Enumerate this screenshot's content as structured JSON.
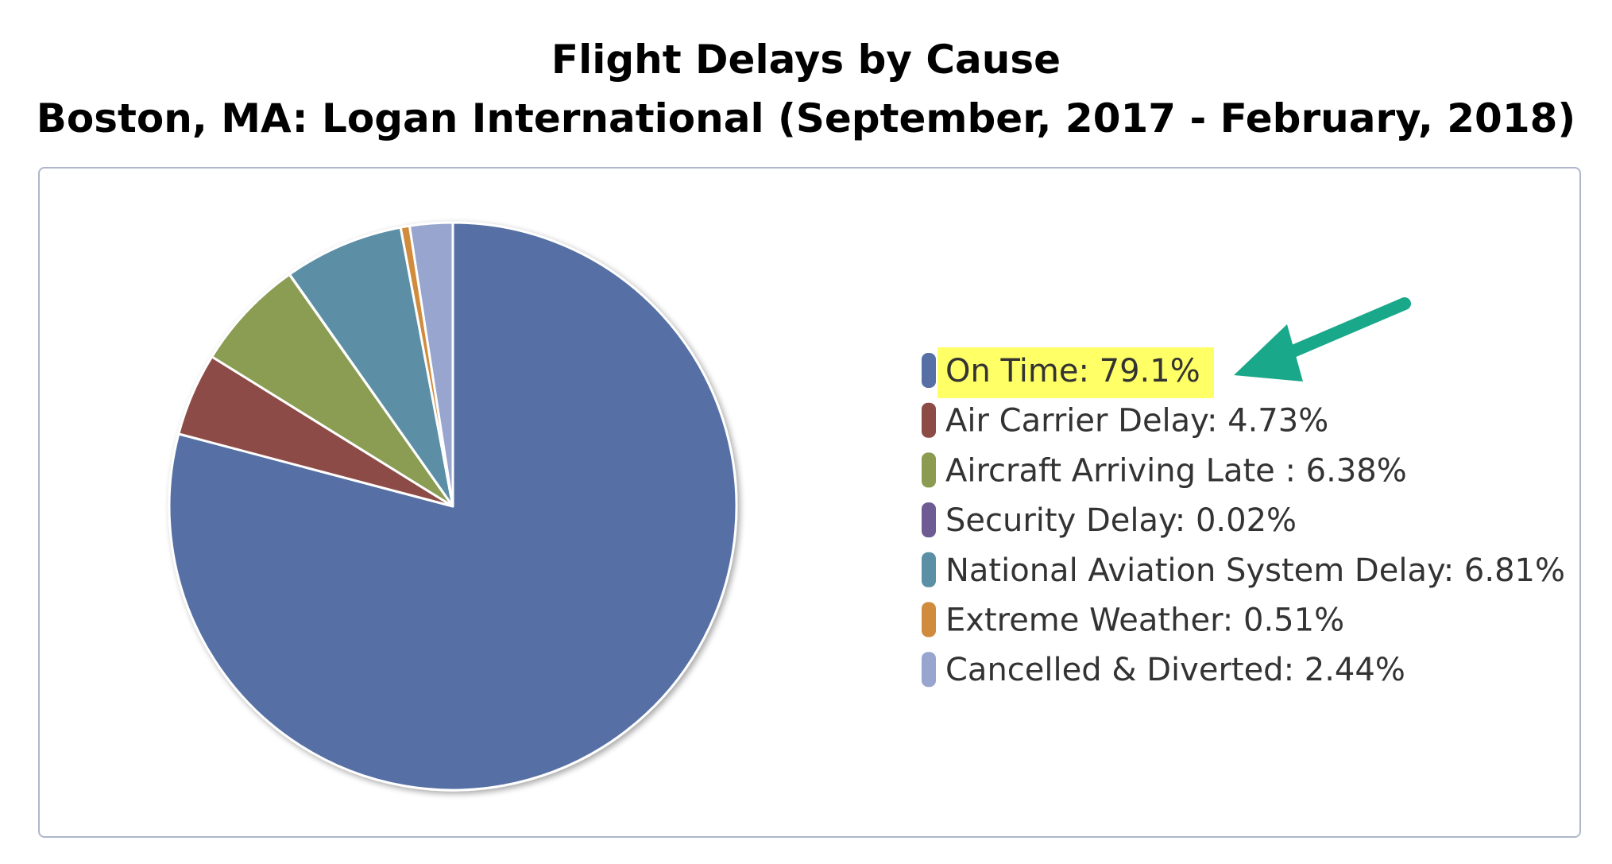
{
  "title": "Flight Delays by Cause",
  "subtitle": "Boston, MA: Logan International (September, 2017 - February, 2018)",
  "highlight": {
    "label": "On Time: 79.1%",
    "fill": "#ffff66",
    "arrow_color": "#1aa88a"
  },
  "chart_data": {
    "type": "pie",
    "title": "Flight Delays by Cause",
    "subtitle": "Boston, MA: Logan International (September, 2017 - February, 2018)",
    "legend_position": "right",
    "slices": [
      {
        "label": "On Time",
        "value": 79.1,
        "color": "#5670a5",
        "legend": "On Time: 79.1%"
      },
      {
        "label": "Air Carrier Delay",
        "value": 4.73,
        "color": "#8d4b46",
        "legend": "Air Carrier Delay: 4.73%"
      },
      {
        "label": "Aircraft Arriving Late ",
        "value": 6.38,
        "color": "#8b9c52",
        "legend": "Aircraft Arriving Late : 6.38%"
      },
      {
        "label": "Security Delay",
        "value": 0.02,
        "color": "#6f5b94",
        "legend": "Security Delay: 0.02%"
      },
      {
        "label": "National Aviation System Delay",
        "value": 6.81,
        "color": "#5b8fa5",
        "legend": "National Aviation System Delay: 6.81%"
      },
      {
        "label": "Extreme Weather",
        "value": 0.51,
        "color": "#d08b3d",
        "legend": "Extreme Weather: 0.51%"
      },
      {
        "label": "Cancelled & Diverted",
        "value": 2.44,
        "color": "#98a5cf",
        "legend": "Cancelled & Diverted: 2.44%"
      }
    ]
  }
}
